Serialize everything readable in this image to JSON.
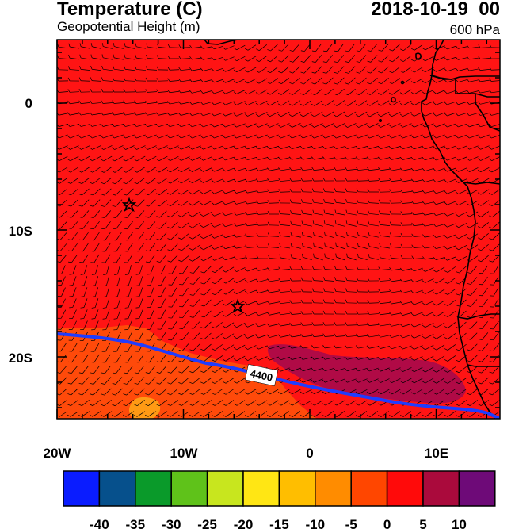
{
  "header": {
    "title": "Temperature (C)",
    "subtitle": "Geopotential Height (m)",
    "datetime": "2018-10-19_00",
    "level": "600 hPa"
  },
  "axes": {
    "x_ticks": [
      "20W",
      "10W",
      "0",
      "10E"
    ],
    "y_ticks": [
      "0",
      "10S",
      "20S"
    ]
  },
  "contour": {
    "label": "4400",
    "color": "#1f3cff"
  },
  "markers": [
    {
      "name": "star-1"
    },
    {
      "name": "star-2"
    }
  ],
  "colorbar": {
    "labels": [
      "-40",
      "-35",
      "-30",
      "-25",
      "-20",
      "-15",
      "-10",
      "-5",
      "0",
      "5",
      "10"
    ],
    "colors": [
      "#0a1cff",
      "#06508c",
      "#0a9a2a",
      "#5fc21a",
      "#c8e61e",
      "#ffe614",
      "#ffbe00",
      "#ff8c00",
      "#ff4600",
      "#ff0a0a",
      "#aa0a3c",
      "#6e0a78"
    ]
  },
  "fields": {
    "background_color": "#ff1414",
    "cold_region_color": "#ff4a0a",
    "warm_region_color": "#b00a46",
    "coldest_patch_color": "#ff9a14"
  }
}
